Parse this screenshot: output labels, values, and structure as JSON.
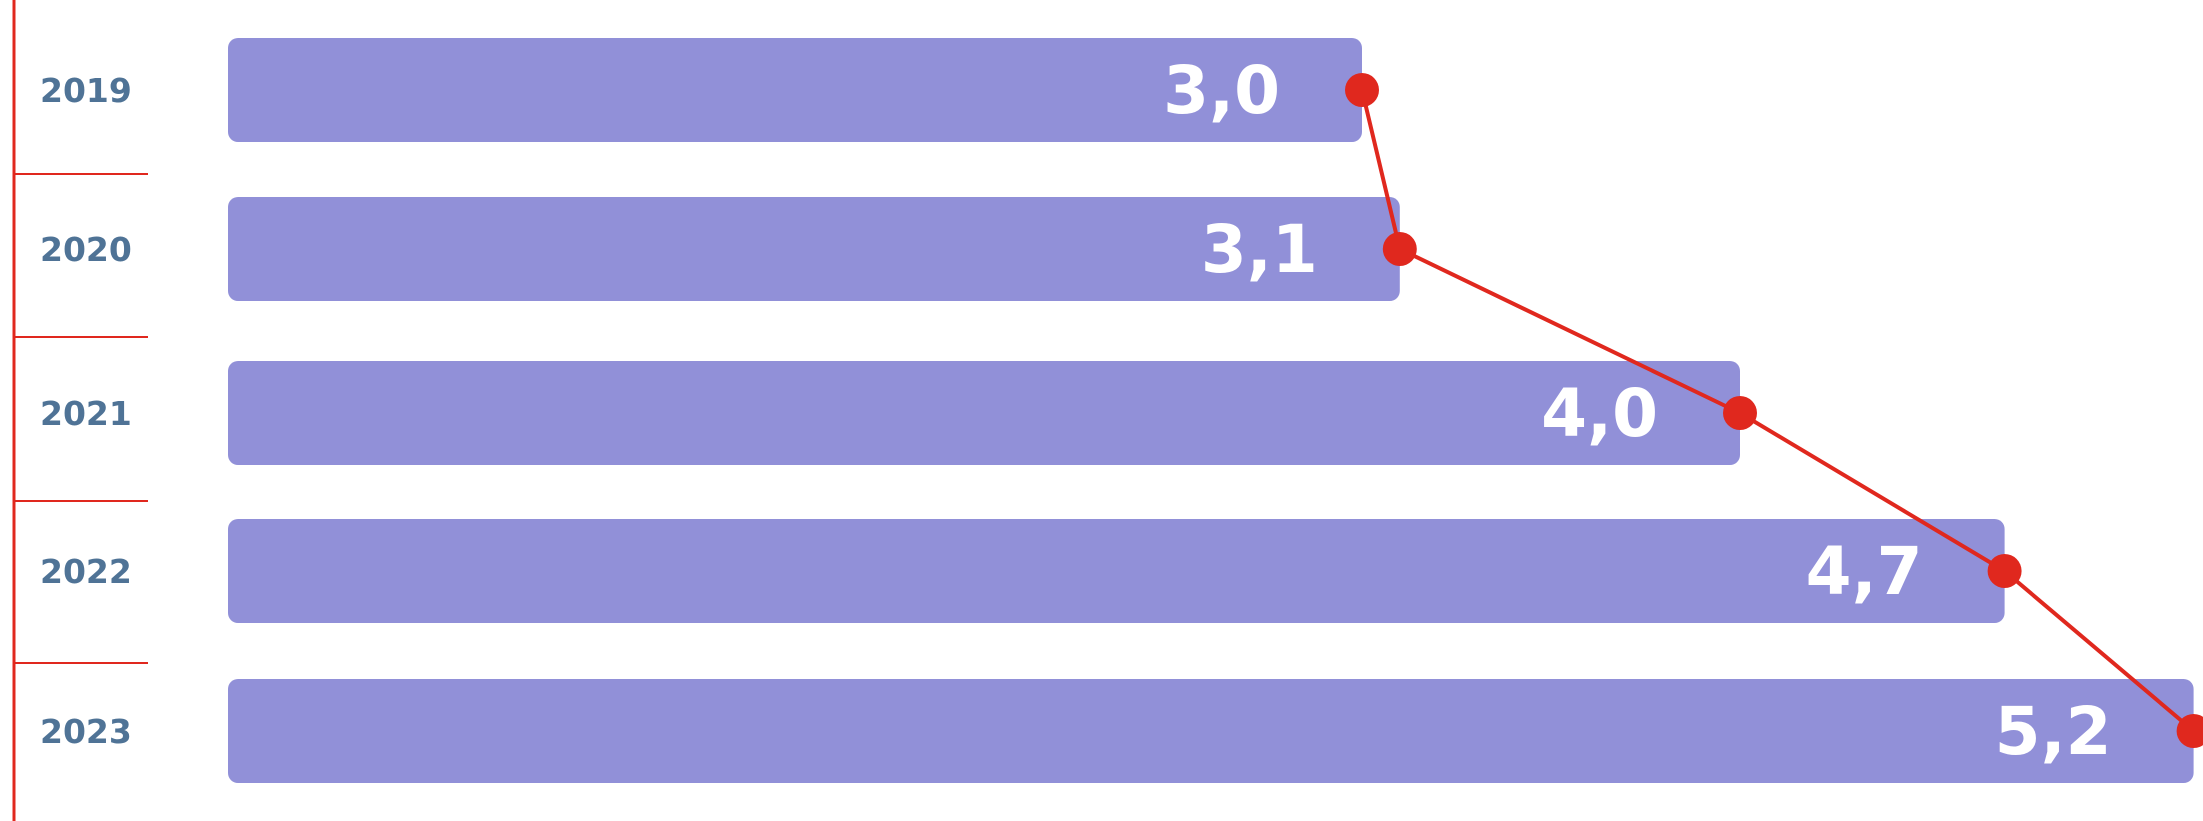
{
  "chart_data": {
    "type": "bar",
    "orientation": "horizontal",
    "categories": [
      "2019",
      "2020",
      "2021",
      "2022",
      "2023"
    ],
    "values": [
      3.0,
      3.1,
      4.0,
      4.7,
      5.2
    ],
    "value_labels": [
      "3,0",
      "3,1",
      "4,0",
      "4,7",
      "5,2"
    ],
    "overlay": "line-with-markers-at-bar-ends",
    "title": "",
    "xlabel": "",
    "ylabel": "",
    "grid": false,
    "legend": "none"
  },
  "colors": {
    "bar": "#9190d8",
    "line": "#e0281e",
    "marker": "#e0281e",
    "axis": "#e0281e",
    "category_text": "#4f7396",
    "value_text": "#ffffff"
  }
}
